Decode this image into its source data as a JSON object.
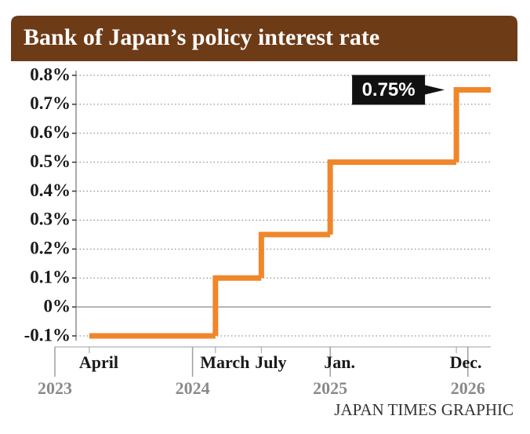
{
  "chart_data": {
    "type": "step",
    "title": "Bank of Japan’s policy interest rate",
    "x": [
      "2023-04",
      "2024-03",
      "2024-07",
      "2025-01",
      "2025-12"
    ],
    "values": [
      -0.1,
      0.1,
      0.25,
      0.5,
      0.75
    ],
    "value_labels": [
      null,
      null,
      null,
      null,
      "0.75%"
    ],
    "color": "#f0862a",
    "xlim": [
      "2023-01",
      "2026-03"
    ],
    "xticks": [
      {
        "value": "2023-04",
        "label": "April"
      },
      {
        "value": "2024-03",
        "label": "March"
      },
      {
        "value": "2024-07",
        "label": "July"
      },
      {
        "value": "2025-01",
        "label": "Jan."
      },
      {
        "value": "2025-12",
        "label": "Dec."
      }
    ],
    "year_ticks": [
      2023,
      2024,
      2025,
      2026
    ],
    "ylim": [
      -0.1,
      0.8
    ],
    "yticks": [
      {
        "value": -0.1,
        "label": "-0.1%"
      },
      {
        "value": 0,
        "label": "0%"
      },
      {
        "value": 0.1,
        "label": "0.1%"
      },
      {
        "value": 0.2,
        "label": "0.2%"
      },
      {
        "value": 0.3,
        "label": "0.3%"
      },
      {
        "value": 0.4,
        "label": "0.4%"
      },
      {
        "value": 0.5,
        "label": "0.5%"
      },
      {
        "value": 0.6,
        "label": "0.6%"
      },
      {
        "value": 0.7,
        "label": "0.7%"
      },
      {
        "value": 0.8,
        "label": "0.8%"
      }
    ],
    "grid": true,
    "source": "JAPAN TIMES GRAPHIC"
  }
}
